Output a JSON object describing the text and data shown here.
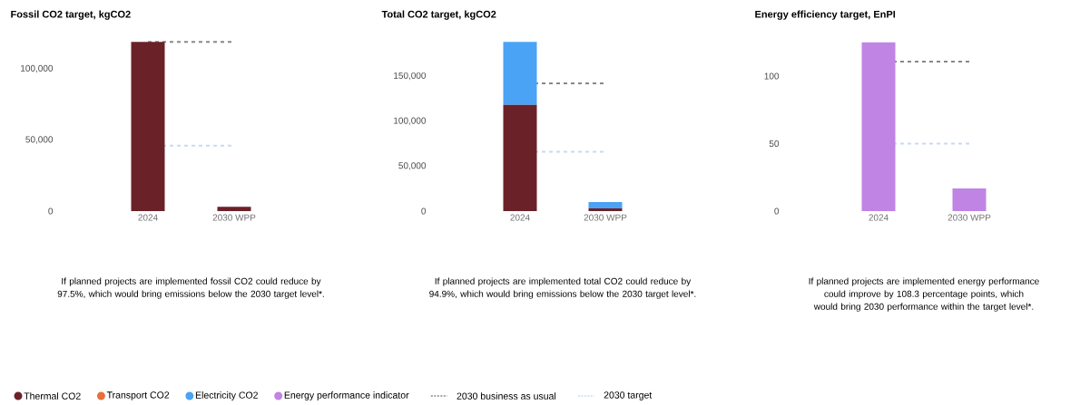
{
  "chart_data": [
    {
      "type": "bar",
      "title": "Fossil CO2 target, kgCO2",
      "categories": [
        "2024",
        "2030 WPP"
      ],
      "ylim": [
        0,
        119000
      ],
      "series": [
        {
          "color": "#6b2128",
          "values": [
            119000,
            3000
          ]
        }
      ],
      "yticks": [
        {
          "value": 0,
          "label": "0"
        },
        {
          "value": 50000,
          "label": "50,000"
        },
        {
          "value": 100000,
          "label": "100,000"
        }
      ],
      "ref_lines": [
        {
          "axis": "y",
          "value": 119000,
          "color": "#888888",
          "line_style": "dashed"
        },
        {
          "axis": "y",
          "value": 46000,
          "color": "#c9d9f5",
          "line_style": "dashed"
        }
      ],
      "annotations": [
        "If planned projects are implemented fossil CO2 could reduce by 97.5%, which would bring emissions below the 2030 target level*."
      ]
    },
    {
      "type": "bar",
      "title": "Total CO2 target, kgCO2",
      "categories": [
        "2024",
        "2030 WPP"
      ],
      "stacked": true,
      "legend": "bottom",
      "ylim": [
        0,
        188000
      ],
      "series": [
        {
          "name": "Thermal  CO2",
          "color": "#6b2128",
          "values": [
            118000,
            3000
          ]
        },
        {
          "name": "Transport CO2",
          "color": "#e8703a",
          "values": [
            null,
            null
          ]
        },
        {
          "name": "Electricity CO2",
          "color": "#4aa3f5",
          "values": [
            70000,
            7000
          ]
        }
      ],
      "yticks": [
        {
          "value": 0,
          "label": "0"
        },
        {
          "value": 50000,
          "label": "50,000"
        },
        {
          "value": 100000,
          "label": "100,000"
        },
        {
          "value": 150000,
          "label": "150,000"
        }
      ],
      "ref_lines": [
        {
          "axis": "y",
          "value": 142000,
          "color": "#888888",
          "line_style": "dashed"
        },
        {
          "axis": "y",
          "value": 66000,
          "color": "#c9d9f5",
          "line_style": "dashed"
        }
      ],
      "annotations": [
        "If planned projects are implemented total CO2 could reduce by 94.9%, which would bring emissions below the 2030 target level*."
      ]
    },
    {
      "type": "bar",
      "title": "Energy efficiency target, EnPI",
      "categories": [
        "2024",
        "2030 WPP"
      ],
      "legend": "bottom",
      "ylim": [
        0,
        125
      ],
      "series": [
        {
          "name": "Energy performance indicator",
          "color": "#c084e4",
          "values": [
            125,
            16.7
          ]
        }
      ],
      "yticks": [
        0,
        50,
        100
      ],
      "ref_lines": [
        {
          "axis": "y",
          "value": 110.7,
          "color": "#888888",
          "line_style": "dashed",
          "label": "2030 business as usual"
        },
        {
          "axis": "y",
          "value": 50,
          "color": "#c9d9f5",
          "line_style": "dashed",
          "label": "2030 target"
        }
      ],
      "annotations": [
        "If planned projects are implemented energy performance could improve by 108.3 percentage points, which would bring 2030 performance within the target level*."
      ]
    }
  ]
}
